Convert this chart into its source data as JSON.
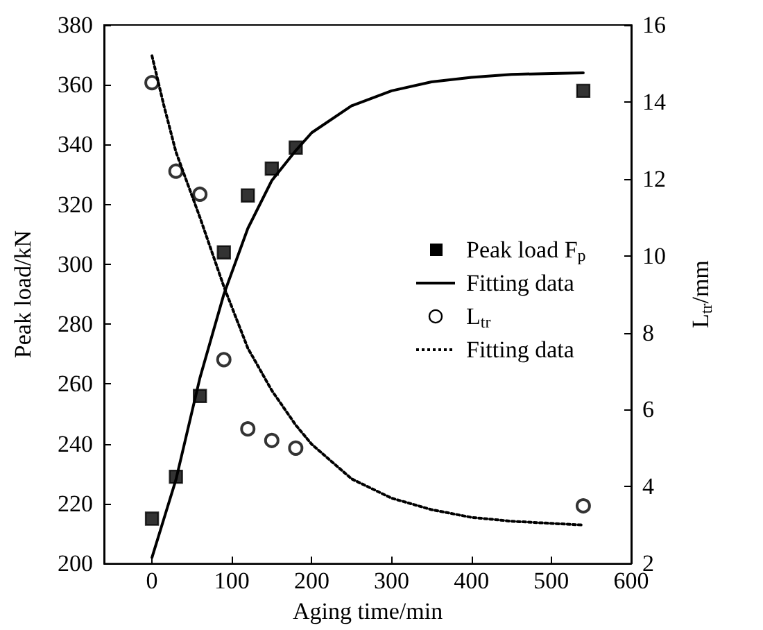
{
  "chart_data": {
    "type": "scatter",
    "xlabel": "Aging time/min",
    "ylabel": "Peak load/kN",
    "y2label": "L$_{tr}$/mm",
    "xlim": [
      -60,
      600
    ],
    "xticks": [
      0,
      100,
      200,
      300,
      400,
      500,
      600
    ],
    "ylim": [
      200,
      380
    ],
    "yticks": [
      200,
      220,
      240,
      260,
      280,
      300,
      320,
      340,
      360,
      380
    ],
    "y2lim": [
      2,
      16
    ],
    "y2ticks": [
      2,
      4,
      6,
      8,
      10,
      12,
      14,
      16
    ],
    "grid": false,
    "legend": "right",
    "series": [
      {
        "name": "Peak load F$_{p}$",
        "marker": "square",
        "color": "#000000",
        "x": [
          0,
          30,
          60,
          90,
          120,
          150,
          180,
          540
        ],
        "values": [
          215,
          229,
          256,
          304,
          323,
          332,
          339,
          358
        ]
      },
      {
        "name": "Fitting data",
        "type": "line",
        "marker": "none",
        "line_style": "solid",
        "color": "#000000",
        "x": [
          0,
          15,
          30,
          60,
          90,
          120,
          150,
          180,
          200,
          250,
          300,
          350,
          400,
          450,
          540
        ],
        "values": [
          202,
          215,
          228,
          262,
          290,
          312,
          328,
          338,
          344,
          353,
          358,
          361,
          362.5,
          363.5,
          364
        ]
      },
      {
        "name": "L$_{tr}$",
        "marker": "circle",
        "axis": "y2",
        "color": "#000000",
        "x": [
          0,
          30,
          60,
          90,
          120,
          150,
          180,
          540
        ],
        "values": [
          14.5,
          12.2,
          11.6,
          7.3,
          5.5,
          5.2,
          5.0,
          3.5
        ]
      },
      {
        "name": "Fitting data",
        "type": "line",
        "marker": "none",
        "line_style": "dotted",
        "axis": "y2",
        "color": "#000000",
        "x": [
          0,
          15,
          30,
          60,
          90,
          120,
          150,
          180,
          200,
          250,
          300,
          350,
          400,
          450,
          540
        ],
        "values": [
          15.2,
          13.9,
          12.7,
          11,
          9.2,
          7.6,
          6.5,
          5.6,
          5.1,
          4.2,
          3.7,
          3.4,
          3.2,
          3.1,
          3.0
        ]
      }
    ]
  }
}
